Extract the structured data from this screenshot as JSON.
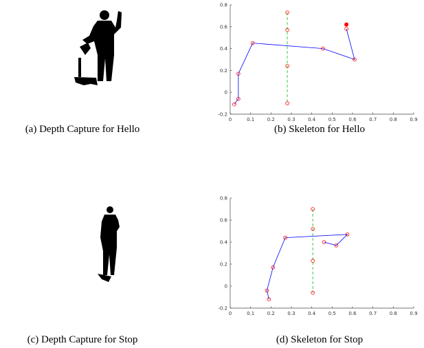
{
  "chart_data": [
    {
      "type": "line",
      "xlim": [
        0,
        0.9
      ],
      "ylim": [
        -0.2,
        0.8
      ],
      "xticks": [
        0,
        0.1,
        0.2,
        0.3,
        0.4,
        0.5,
        0.6,
        0.7,
        0.8,
        0.9
      ],
      "yticks": [
        -0.2,
        0,
        0.2,
        0.4,
        0.6,
        0.8
      ],
      "series": [
        {
          "color": "#0000ff",
          "linestyle": "solid",
          "marker": "open",
          "x": [
            0.02,
            0.04,
            0.04,
            0.11,
            0.455,
            0.61,
            0.57
          ],
          "values": [
            -0.11,
            -0.06,
            0.17,
            0.45,
            0.4,
            0.3,
            0.58
          ]
        },
        {
          "color": "#00c000",
          "linestyle": "dashed",
          "marker": "open",
          "x": [
            0.28,
            0.28,
            0.28,
            0.28
          ],
          "values": [
            0.73,
            0.57,
            0.24,
            -0.1
          ]
        },
        {
          "color": "#ff0000",
          "linestyle": "none",
          "marker": "filled",
          "x": [
            0.57
          ],
          "values": [
            0.62
          ]
        }
      ]
    },
    {
      "type": "line",
      "xlim": [
        0,
        0.9
      ],
      "ylim": [
        -0.2,
        0.8
      ],
      "xticks": [
        0,
        0.1,
        0.2,
        0.3,
        0.4,
        0.5,
        0.6,
        0.7,
        0.8,
        0.9
      ],
      "yticks": [
        -0.2,
        0,
        0.2,
        0.4,
        0.6,
        0.8
      ],
      "series": [
        {
          "color": "#0000ff",
          "linestyle": "solid",
          "marker": "open",
          "x": [
            0.19,
            0.18,
            0.21,
            0.27,
            0.575,
            0.52,
            0.46
          ],
          "values": [
            -0.12,
            -0.04,
            0.17,
            0.44,
            0.47,
            0.37,
            0.4
          ]
        },
        {
          "color": "#00c000",
          "linestyle": "dashed",
          "marker": "open",
          "x": [
            0.405,
            0.405,
            0.405,
            0.405
          ],
          "values": [
            0.7,
            0.52,
            0.23,
            -0.06
          ]
        }
      ]
    }
  ],
  "captions": [
    "(a) Depth Capture for Hello",
    "(b) Skeleton for Hello",
    "(c) Depth Capture for Stop",
    "(d) Skeleton for Stop"
  ]
}
